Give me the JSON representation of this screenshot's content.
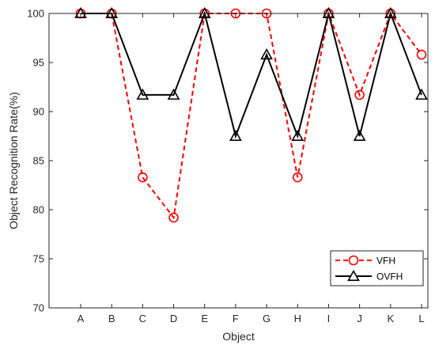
{
  "chart_data": {
    "type": "line",
    "xlabel": "Object",
    "ylabel": "Object Recognition Rate(%)",
    "ylim": [
      70,
      100
    ],
    "yticks": [
      70,
      75,
      80,
      85,
      90,
      95,
      100
    ],
    "grid": false,
    "legend_position": "bottom-right",
    "categories": [
      "A",
      "B",
      "C",
      "D",
      "E",
      "F",
      "G",
      "H",
      "I",
      "J",
      "K",
      "L"
    ],
    "series": [
      {
        "name": "VFH",
        "color": "#ff0000",
        "line_style": "dashed",
        "marker": "circle",
        "values": [
          100,
          100,
          83.3,
          79.2,
          100,
          100,
          100,
          83.3,
          100,
          91.7,
          100,
          95.8
        ]
      },
      {
        "name": "OVFH",
        "color": "#000000",
        "line_style": "solid",
        "marker": "triangle",
        "values": [
          100,
          100,
          91.7,
          91.7,
          100,
          87.5,
          95.8,
          87.5,
          100,
          87.5,
          100,
          91.7
        ]
      }
    ]
  }
}
